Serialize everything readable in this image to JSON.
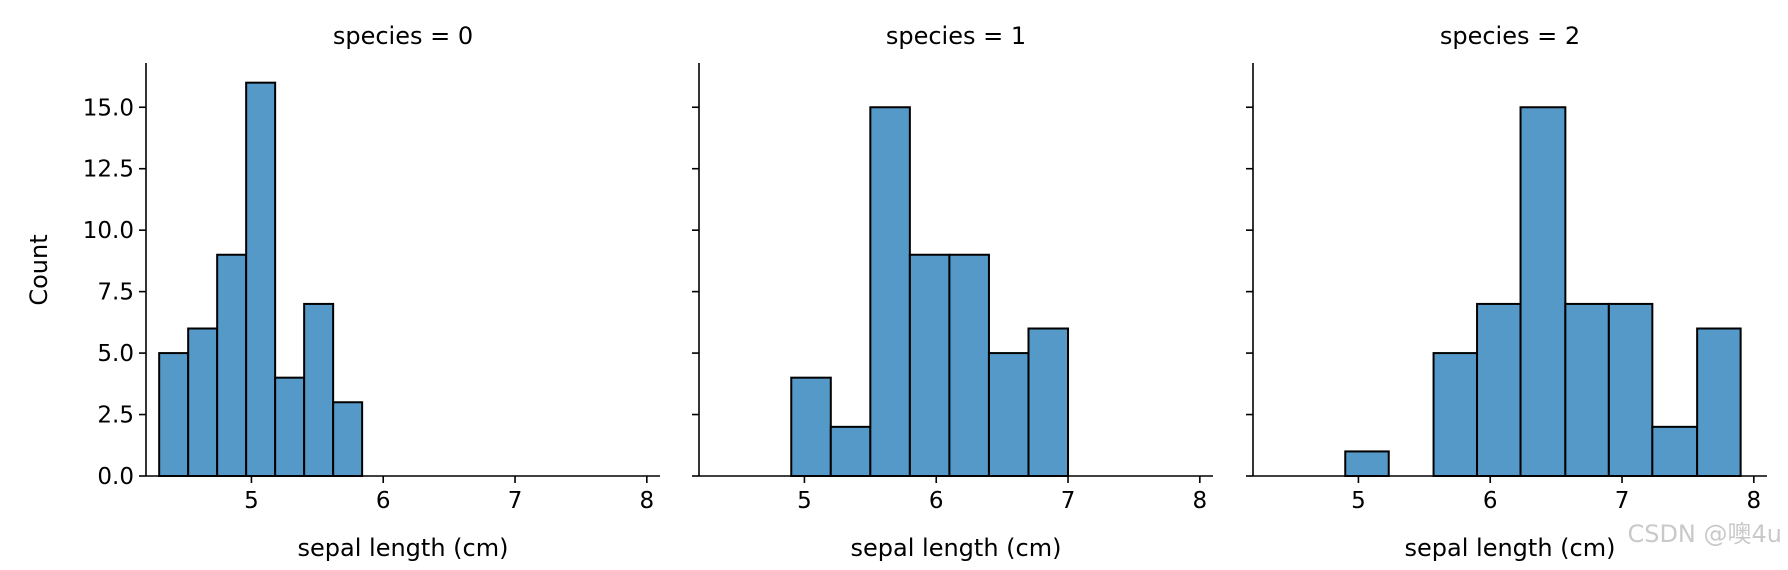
{
  "watermark": "CSDN @噢4u",
  "chart_data": {
    "type": "bar",
    "ylabel": "Count",
    "xlabel": "sepal length (cm)",
    "xlim": [
      4.2,
      8.1
    ],
    "ylim": [
      0,
      16.8
    ],
    "xticks": [
      5,
      6,
      7,
      8
    ],
    "yticks": [
      "0.0",
      "2.5",
      "5.0",
      "7.5",
      "10.0",
      "12.5",
      "15.0"
    ],
    "bar_color": "#5499c7",
    "edge_color": "#000000",
    "panels": [
      {
        "title": "species = 0",
        "bins": [
          {
            "x0": 4.3,
            "x1": 4.52,
            "count": 5
          },
          {
            "x0": 4.52,
            "x1": 4.74,
            "count": 6
          },
          {
            "x0": 4.74,
            "x1": 4.96,
            "count": 9
          },
          {
            "x0": 4.96,
            "x1": 5.18,
            "count": 16
          },
          {
            "x0": 5.18,
            "x1": 5.4,
            "count": 4
          },
          {
            "x0": 5.4,
            "x1": 5.62,
            "count": 7
          },
          {
            "x0": 5.62,
            "x1": 5.84,
            "count": 3
          }
        ]
      },
      {
        "title": "species = 1",
        "bins": [
          {
            "x0": 4.9,
            "x1": 5.2,
            "count": 4
          },
          {
            "x0": 5.2,
            "x1": 5.5,
            "count": 2
          },
          {
            "x0": 5.5,
            "x1": 5.8,
            "count": 15
          },
          {
            "x0": 5.8,
            "x1": 6.1,
            "count": 9
          },
          {
            "x0": 6.1,
            "x1": 6.4,
            "count": 9
          },
          {
            "x0": 6.4,
            "x1": 6.7,
            "count": 5
          },
          {
            "x0": 6.7,
            "x1": 7.0,
            "count": 6
          }
        ]
      },
      {
        "title": "species = 2",
        "bins": [
          {
            "x0": 4.9,
            "x1": 5.23,
            "count": 1
          },
          {
            "x0": 5.23,
            "x1": 5.57,
            "count": 0
          },
          {
            "x0": 5.57,
            "x1": 5.9,
            "count": 5
          },
          {
            "x0": 5.9,
            "x1": 6.23,
            "count": 7
          },
          {
            "x0": 6.23,
            "x1": 6.57,
            "count": 15
          },
          {
            "x0": 6.57,
            "x1": 6.9,
            "count": 7
          },
          {
            "x0": 6.9,
            "x1": 7.23,
            "count": 7
          },
          {
            "x0": 7.23,
            "x1": 7.57,
            "count": 2
          },
          {
            "x0": 7.57,
            "x1": 7.9,
            "count": 6
          }
        ]
      }
    ]
  }
}
